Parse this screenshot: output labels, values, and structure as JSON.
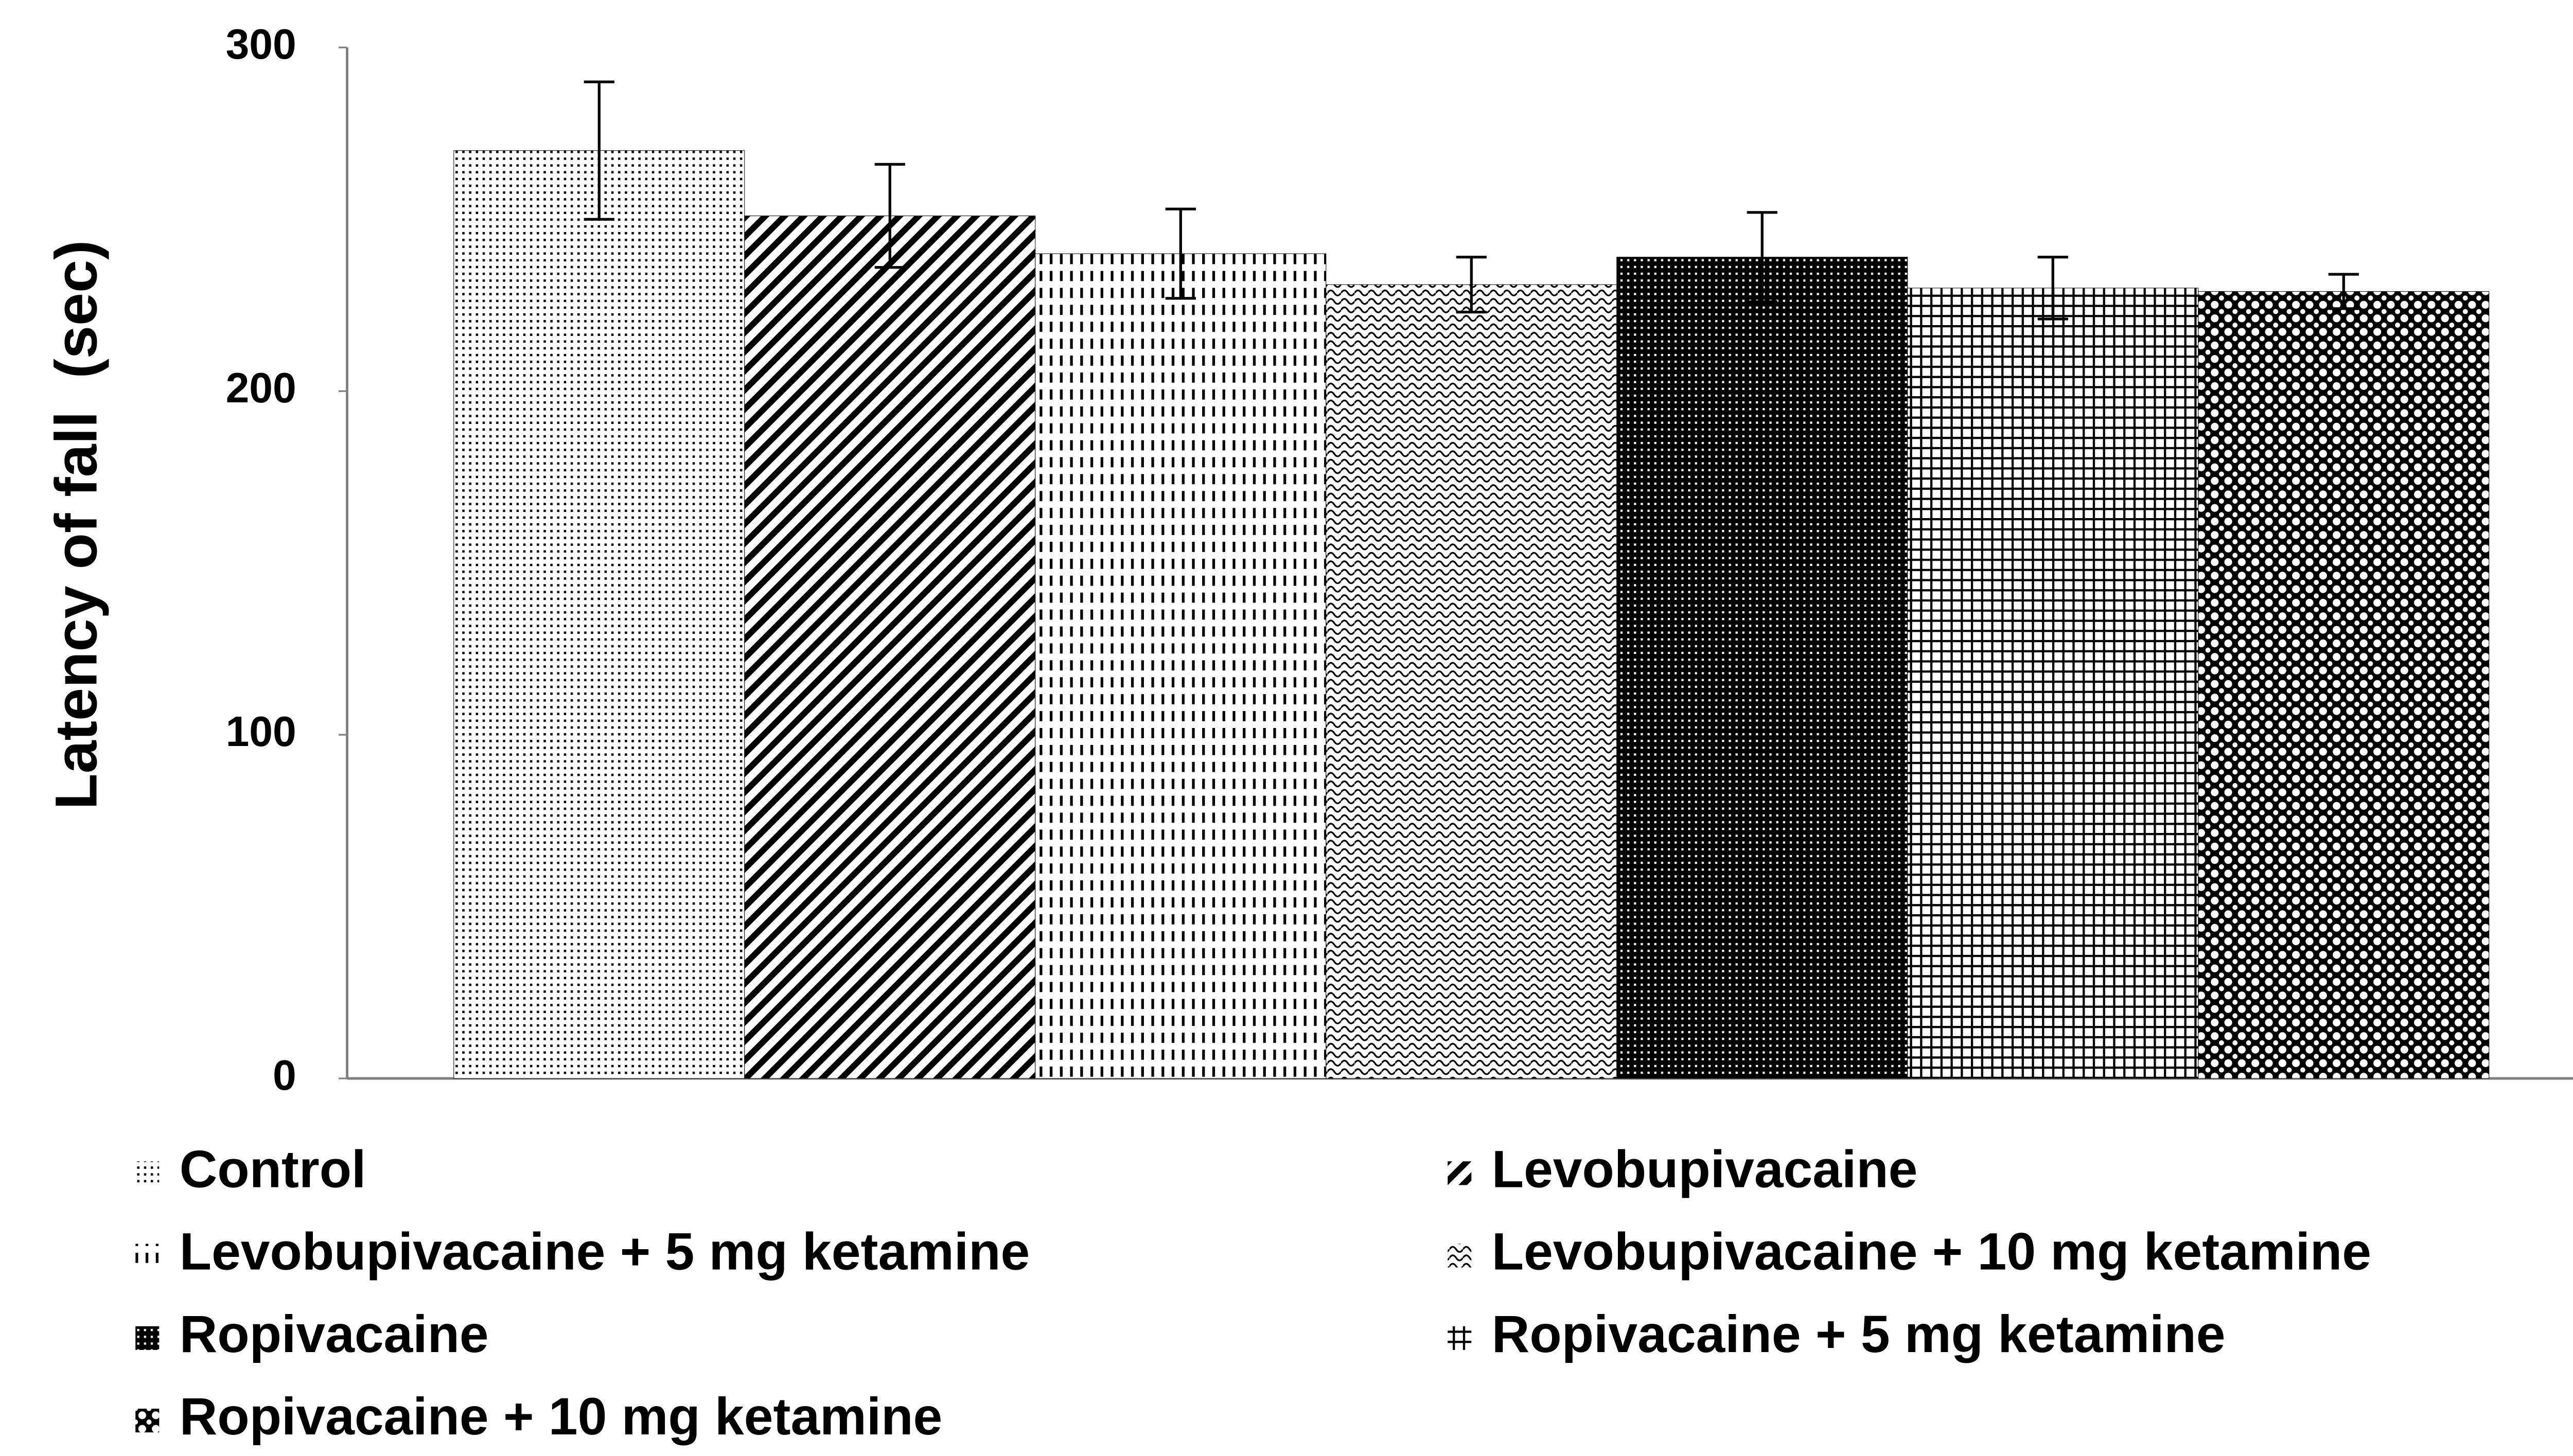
{
  "chart_data": {
    "type": "bar",
    "y_label": "Latency of fall  (sec)",
    "ylim": [
      0,
      300
    ],
    "yticks": [
      0,
      100,
      200,
      300
    ],
    "series": [
      {
        "name": "Control",
        "color": "#000000",
        "pattern": "dots",
        "values": [
          270
        ],
        "errors": [
          20
        ]
      },
      {
        "name": "Levobupivacaine",
        "color": "#000000",
        "pattern": "diagonal",
        "values": [
          251
        ],
        "errors": [
          15
        ]
      },
      {
        "name": "Levobupivacaine + 5 mg ketamine",
        "color": "#000000",
        "pattern": "dashes",
        "values": [
          240
        ],
        "errors": [
          13
        ]
      },
      {
        "name": "Levobupivacaine + 10 mg ketamine",
        "color": "#000000",
        "pattern": "waves",
        "values": [
          231
        ],
        "errors": [
          8
        ]
      },
      {
        "name": "Ropivacaine",
        "color": "#000000",
        "pattern": "dense",
        "values": [
          239
        ],
        "errors": [
          13
        ]
      },
      {
        "name": "Ropivacaine + 5 mg ketamine",
        "color": "#000000",
        "pattern": "grid",
        "values": [
          230
        ],
        "errors": [
          9
        ]
      },
      {
        "name": "Ropivacaine + 10 mg ketamine",
        "color": "#000000",
        "pattern": "circles",
        "values": [
          229
        ],
        "errors": [
          5
        ]
      }
    ]
  }
}
